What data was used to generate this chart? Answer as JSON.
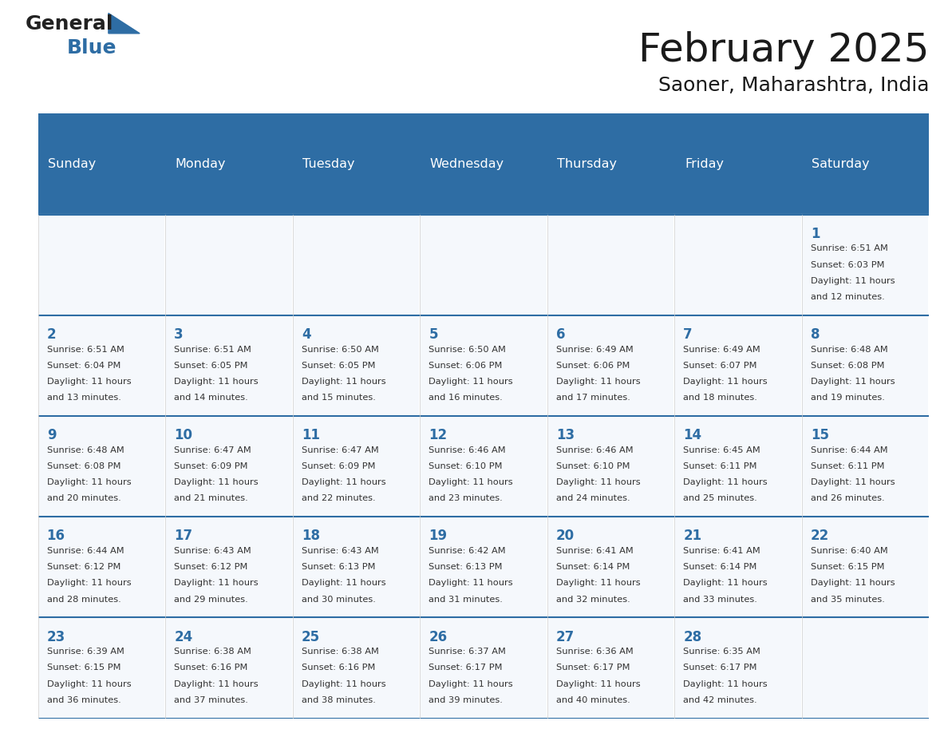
{
  "title": "February 2025",
  "subtitle": "Saoner, Maharashtra, India",
  "days_of_week": [
    "Sunday",
    "Monday",
    "Tuesday",
    "Wednesday",
    "Thursday",
    "Friday",
    "Saturday"
  ],
  "header_bg": "#2E6DA4",
  "header_text": "#FFFFFF",
  "cell_bg_light": "#F0F4F8",
  "cell_bg_white": "#FFFFFF",
  "border_color": "#2E6DA4",
  "text_color": "#333333",
  "day_number_color": "#2E6DA4",
  "logo_general_color": "#222222",
  "logo_blue_color": "#2E6DA4",
  "calendar": [
    [
      null,
      null,
      null,
      null,
      null,
      null,
      {
        "day": 1,
        "sunrise": "6:51 AM",
        "sunset": "6:03 PM",
        "daylight": "11 hours and 12 minutes."
      }
    ],
    [
      {
        "day": 2,
        "sunrise": "6:51 AM",
        "sunset": "6:04 PM",
        "daylight": "11 hours and 13 minutes."
      },
      {
        "day": 3,
        "sunrise": "6:51 AM",
        "sunset": "6:05 PM",
        "daylight": "11 hours and 14 minutes."
      },
      {
        "day": 4,
        "sunrise": "6:50 AM",
        "sunset": "6:05 PM",
        "daylight": "11 hours and 15 minutes."
      },
      {
        "day": 5,
        "sunrise": "6:50 AM",
        "sunset": "6:06 PM",
        "daylight": "11 hours and 16 minutes."
      },
      {
        "day": 6,
        "sunrise": "6:49 AM",
        "sunset": "6:06 PM",
        "daylight": "11 hours and 17 minutes."
      },
      {
        "day": 7,
        "sunrise": "6:49 AM",
        "sunset": "6:07 PM",
        "daylight": "11 hours and 18 minutes."
      },
      {
        "day": 8,
        "sunrise": "6:48 AM",
        "sunset": "6:08 PM",
        "daylight": "11 hours and 19 minutes."
      }
    ],
    [
      {
        "day": 9,
        "sunrise": "6:48 AM",
        "sunset": "6:08 PM",
        "daylight": "11 hours and 20 minutes."
      },
      {
        "day": 10,
        "sunrise": "6:47 AM",
        "sunset": "6:09 PM",
        "daylight": "11 hours and 21 minutes."
      },
      {
        "day": 11,
        "sunrise": "6:47 AM",
        "sunset": "6:09 PM",
        "daylight": "11 hours and 22 minutes."
      },
      {
        "day": 12,
        "sunrise": "6:46 AM",
        "sunset": "6:10 PM",
        "daylight": "11 hours and 23 minutes."
      },
      {
        "day": 13,
        "sunrise": "6:46 AM",
        "sunset": "6:10 PM",
        "daylight": "11 hours and 24 minutes."
      },
      {
        "day": 14,
        "sunrise": "6:45 AM",
        "sunset": "6:11 PM",
        "daylight": "11 hours and 25 minutes."
      },
      {
        "day": 15,
        "sunrise": "6:44 AM",
        "sunset": "6:11 PM",
        "daylight": "11 hours and 26 minutes."
      }
    ],
    [
      {
        "day": 16,
        "sunrise": "6:44 AM",
        "sunset": "6:12 PM",
        "daylight": "11 hours and 28 minutes."
      },
      {
        "day": 17,
        "sunrise": "6:43 AM",
        "sunset": "6:12 PM",
        "daylight": "11 hours and 29 minutes."
      },
      {
        "day": 18,
        "sunrise": "6:43 AM",
        "sunset": "6:13 PM",
        "daylight": "11 hours and 30 minutes."
      },
      {
        "day": 19,
        "sunrise": "6:42 AM",
        "sunset": "6:13 PM",
        "daylight": "11 hours and 31 minutes."
      },
      {
        "day": 20,
        "sunrise": "6:41 AM",
        "sunset": "6:14 PM",
        "daylight": "11 hours and 32 minutes."
      },
      {
        "day": 21,
        "sunrise": "6:41 AM",
        "sunset": "6:14 PM",
        "daylight": "11 hours and 33 minutes."
      },
      {
        "day": 22,
        "sunrise": "6:40 AM",
        "sunset": "6:15 PM",
        "daylight": "11 hours and 35 minutes."
      }
    ],
    [
      {
        "day": 23,
        "sunrise": "6:39 AM",
        "sunset": "6:15 PM",
        "daylight": "11 hours and 36 minutes."
      },
      {
        "day": 24,
        "sunrise": "6:38 AM",
        "sunset": "6:16 PM",
        "daylight": "11 hours and 37 minutes."
      },
      {
        "day": 25,
        "sunrise": "6:38 AM",
        "sunset": "6:16 PM",
        "daylight": "11 hours and 38 minutes."
      },
      {
        "day": 26,
        "sunrise": "6:37 AM",
        "sunset": "6:17 PM",
        "daylight": "11 hours and 39 minutes."
      },
      {
        "day": 27,
        "sunrise": "6:36 AM",
        "sunset": "6:17 PM",
        "daylight": "11 hours and 40 minutes."
      },
      {
        "day": 28,
        "sunrise": "6:35 AM",
        "sunset": "6:17 PM",
        "daylight": "11 hours and 42 minutes."
      },
      null
    ]
  ]
}
